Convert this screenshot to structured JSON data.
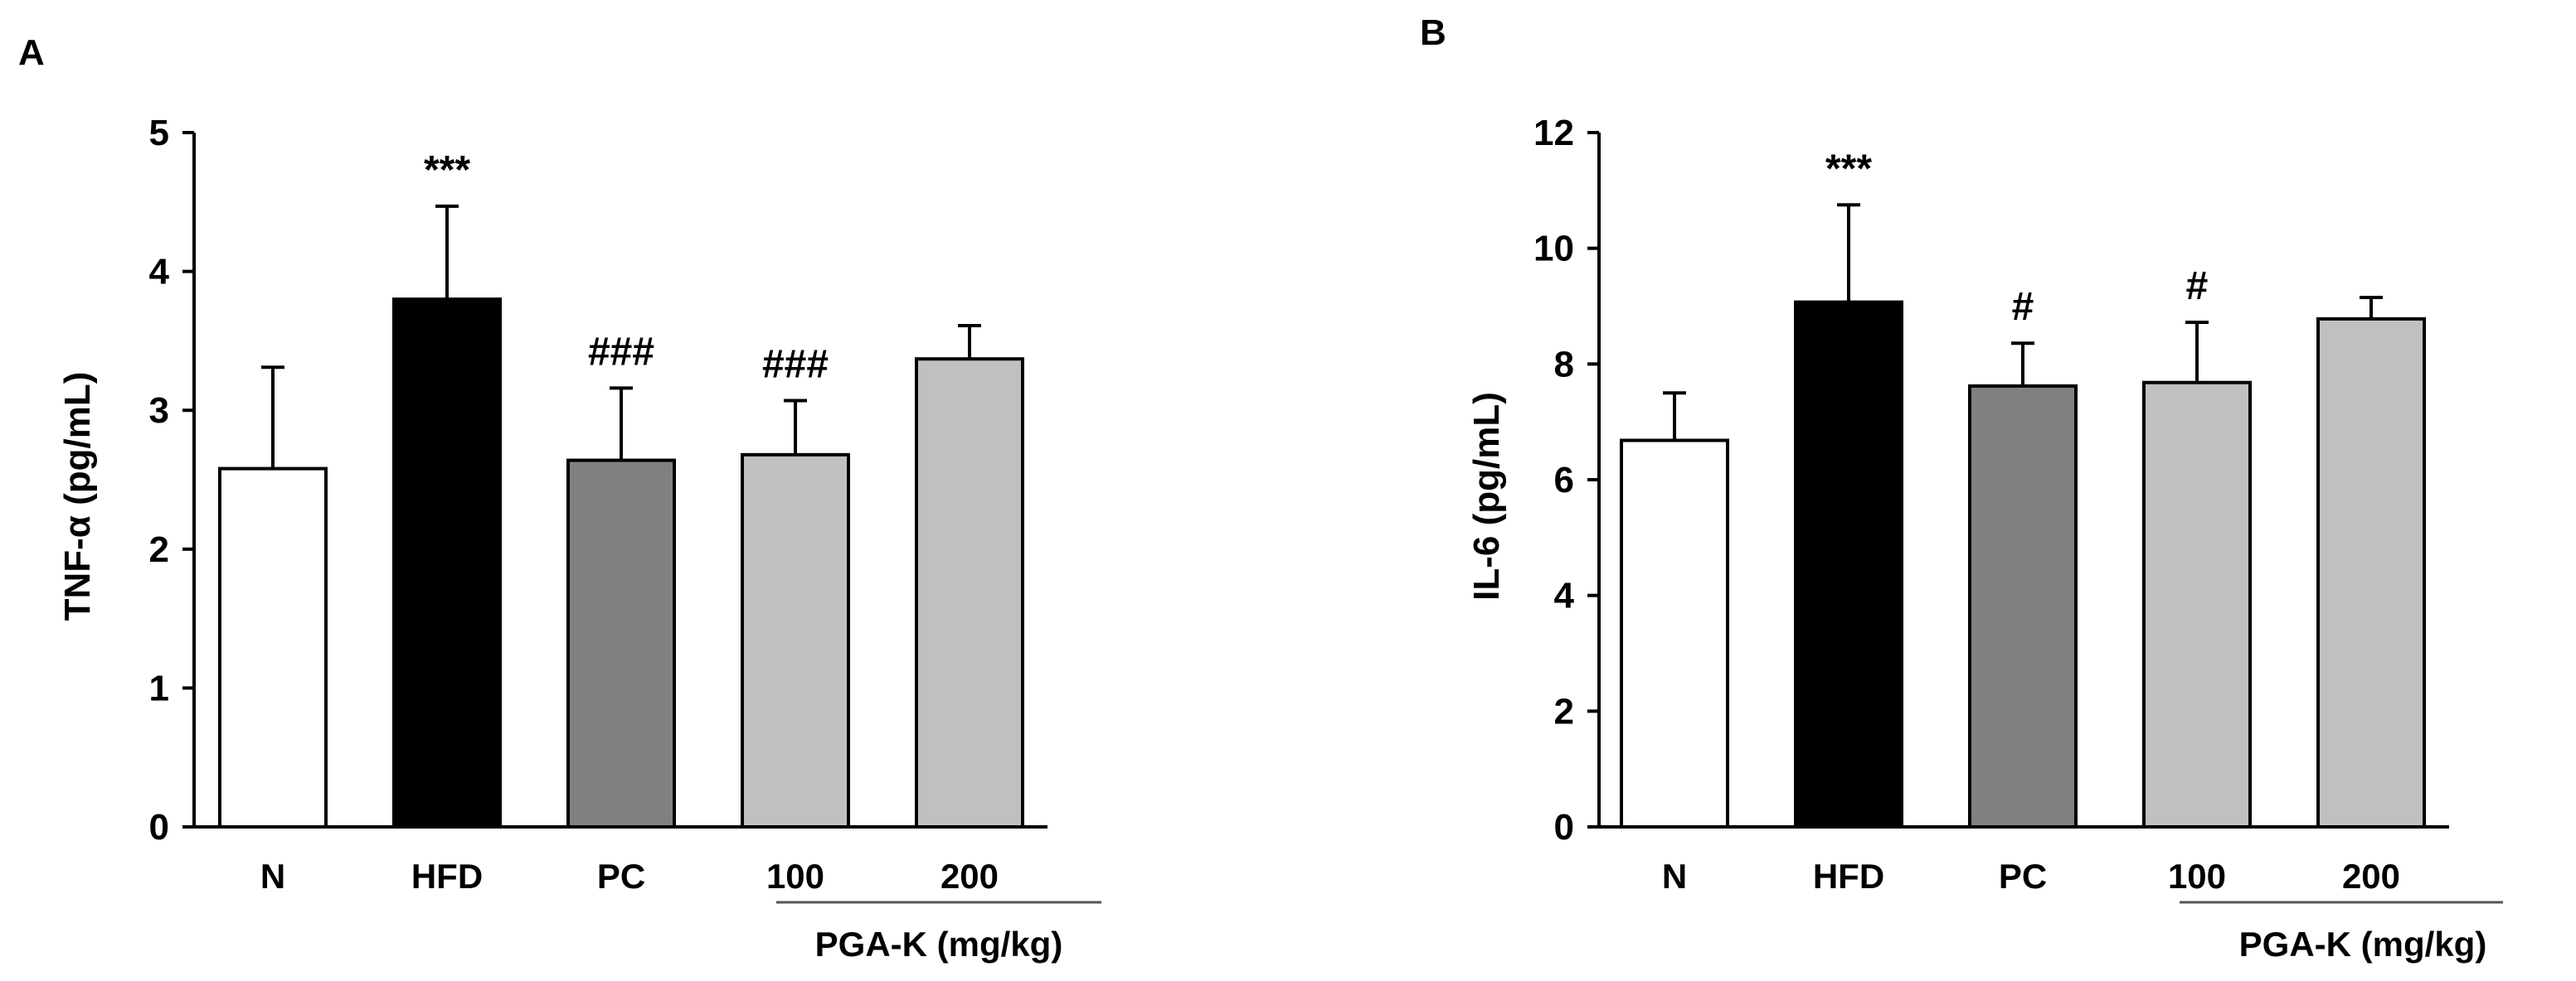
{
  "chart_data": [
    {
      "type": "bar",
      "panel_label": "A",
      "categories": [
        "N",
        "HFD",
        "PC",
        "100",
        "200"
      ],
      "values": [
        2.58,
        3.8,
        2.64,
        2.68,
        3.37
      ],
      "errors": [
        0.73,
        0.67,
        0.52,
        0.39,
        0.24
      ],
      "annotations": [
        "",
        "***",
        "###",
        "###",
        ""
      ],
      "bar_colors": [
        "#ffffff",
        "#000000",
        "#808080",
        "#c0c0c0",
        "#c0c0c0"
      ],
      "ylabel": "TNF-α (pg/mL)",
      "ylim": [
        0,
        5
      ],
      "yticks": [
        0,
        1,
        2,
        3,
        4,
        5
      ],
      "group_label": "PGA-K (mg/kg)",
      "group_categories": [
        "100",
        "200"
      ]
    },
    {
      "type": "bar",
      "panel_label": "B",
      "categories": [
        "N",
        "HFD",
        "PC",
        "100",
        "200"
      ],
      "values": [
        6.68,
        9.07,
        7.62,
        7.68,
        8.78
      ],
      "errors": [
        0.82,
        1.68,
        0.74,
        1.04,
        0.37
      ],
      "annotations": [
        "",
        "***",
        "#",
        "#",
        ""
      ],
      "bar_colors": [
        "#ffffff",
        "#000000",
        "#808080",
        "#c0c0c0",
        "#c0c0c0"
      ],
      "ylabel": "IL-6 (pg/mL)",
      "ylim": [
        0,
        12
      ],
      "yticks": [
        0,
        2,
        4,
        6,
        8,
        10,
        12
      ],
      "group_label": "PGA-K (mg/kg)",
      "group_categories": [
        "100",
        "200"
      ]
    }
  ]
}
